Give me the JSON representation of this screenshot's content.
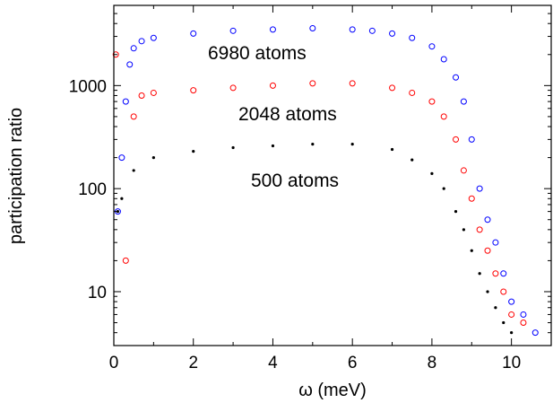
{
  "chart_data": {
    "type": "scatter",
    "title": "",
    "xlabel": "ω (meV)",
    "ylabel": "participation ratio",
    "xlim": [
      0,
      11
    ],
    "ylim": [
      3,
      6000
    ],
    "yscale": "log",
    "grid": false,
    "x_ticks": [
      0,
      2,
      4,
      6,
      8,
      10
    ],
    "x_tick_labels": [
      "0",
      "2",
      "4",
      "6",
      "8",
      "10"
    ],
    "y_ticks": [
      10,
      100,
      1000
    ],
    "y_tick_labels": [
      "10",
      "100",
      "1000"
    ],
    "series": [
      {
        "name": "6980 atoms",
        "color": "#0000ff",
        "marker": "open-circle",
        "x": [
          0.1,
          0.2,
          0.3,
          0.4,
          0.5,
          0.7,
          1,
          2,
          3,
          4,
          5,
          6,
          6.5,
          7,
          7.5,
          8,
          8.3,
          8.6,
          8.8,
          9,
          9.2,
          9.4,
          9.6,
          9.8,
          10,
          10.3,
          10.6
        ],
        "y": [
          60,
          200,
          700,
          1600,
          2300,
          2700,
          2900,
          3200,
          3400,
          3500,
          3600,
          3500,
          3400,
          3200,
          2900,
          2400,
          1800,
          1200,
          700,
          300,
          100,
          50,
          30,
          15,
          8,
          6,
          4
        ]
      },
      {
        "name": "2048 atoms",
        "color": "#ff0000",
        "marker": "open-circle",
        "x": [
          0.05,
          0.3,
          0.5,
          0.7,
          1,
          2,
          3,
          4,
          5,
          6,
          7,
          7.5,
          8,
          8.3,
          8.6,
          8.8,
          9,
          9.2,
          9.4,
          9.6,
          9.8,
          10,
          10.3
        ],
        "y": [
          2000,
          20,
          500,
          800,
          850,
          900,
          950,
          1000,
          1050,
          1050,
          950,
          850,
          700,
          500,
          300,
          150,
          80,
          40,
          25,
          15,
          10,
          6,
          5
        ]
      },
      {
        "name": "500 atoms",
        "color": "#000000",
        "marker": "dot",
        "x": [
          0.1,
          0.2,
          0.5,
          1,
          2,
          3,
          4,
          5,
          6,
          7,
          7.5,
          8,
          8.3,
          8.6,
          8.8,
          9,
          9.2,
          9.4,
          9.6,
          9.8,
          10
        ],
        "y": [
          60,
          80,
          150,
          200,
          230,
          250,
          260,
          270,
          270,
          240,
          190,
          140,
          100,
          60,
          40,
          25,
          15,
          10,
          7,
          5,
          4
        ]
      }
    ]
  }
}
